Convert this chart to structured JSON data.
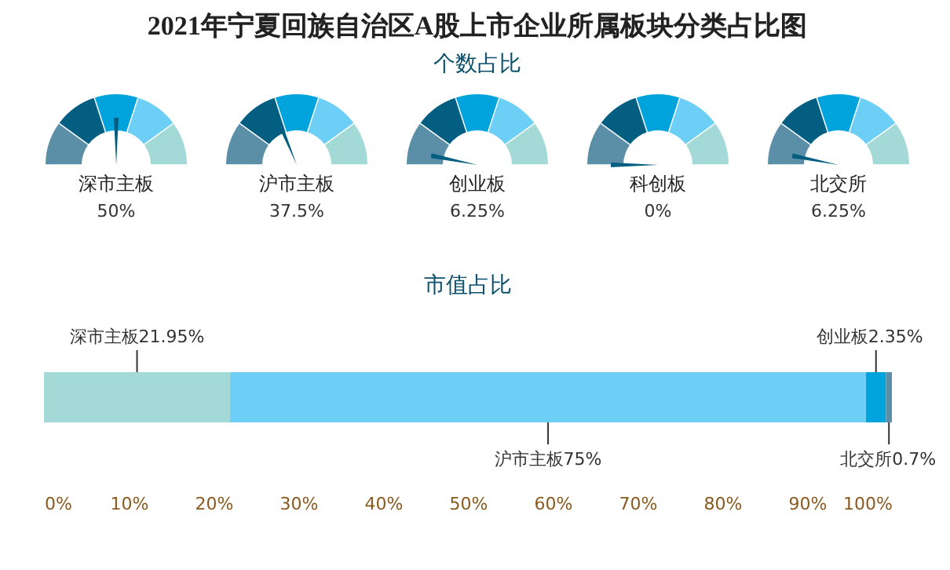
{
  "chart_data": [
    {
      "type": "other",
      "title": "2021年宁夏回族自治区A股上市企业所属板块分类占比图",
      "subtitle": "个数占比",
      "categories": [
        "深市主板",
        "沪市主板",
        "创业板",
        "科创板",
        "北交所"
      ],
      "values": [
        50,
        37.5,
        6.25,
        0,
        6.25
      ],
      "value_labels": [
        "50%",
        "37.5%",
        "6.25%",
        "0%",
        "6.25%"
      ],
      "colors": [
        "#5b8fa8",
        "#035e82",
        "#00a3dc",
        "#6dcff6",
        "#a3d9d6"
      ]
    },
    {
      "type": "bar",
      "orientation": "horizontal",
      "stacked": true,
      "title": "市值占比",
      "categories": [
        null
      ],
      "series": [
        {
          "name": "深市主板",
          "color": "#a3d9d6",
          "values": [
            21.95
          ],
          "value_labels": [
            "21.95%"
          ]
        },
        {
          "name": "沪市主板",
          "color": "#6dcff6",
          "values": [
            75
          ],
          "value_labels": [
            "75%"
          ]
        },
        {
          "name": "创业板",
          "color": "#00a3dc",
          "values": [
            2.35
          ],
          "value_labels": [
            "2.35%"
          ]
        },
        {
          "name": "北交所",
          "color": "#5b8fa8",
          "values": [
            0.7
          ],
          "value_labels": [
            "0.7%"
          ]
        }
      ],
      "xlim": [
        0,
        100
      ],
      "xticks": [
        {
          "value": 0,
          "label": "0%"
        },
        {
          "value": 10,
          "label": "10%"
        },
        {
          "value": 20,
          "label": "20%"
        },
        {
          "value": 30,
          "label": "30%"
        },
        {
          "value": 40,
          "label": "40%"
        },
        {
          "value": 50,
          "label": "50%"
        },
        {
          "value": 60,
          "label": "60%"
        },
        {
          "value": 70,
          "label": "70%"
        },
        {
          "value": 80,
          "label": "80%"
        },
        {
          "value": 90,
          "label": "90%"
        },
        {
          "value": 100,
          "label": "100%"
        }
      ],
      "grid": false,
      "legend": false
    }
  ]
}
